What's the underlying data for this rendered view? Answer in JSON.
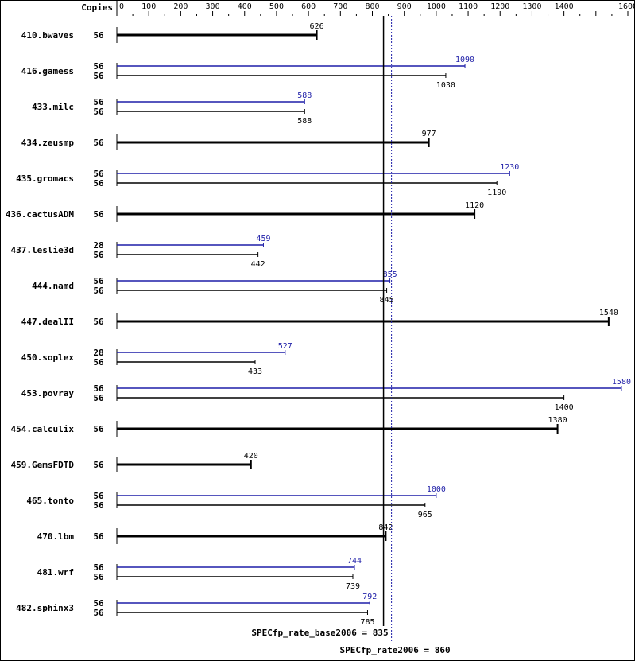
{
  "chart_data": {
    "type": "bar",
    "orientation": "horizontal",
    "copies_header": "Copies",
    "xlim": [
      0,
      1600
    ],
    "tick_labels": [
      0,
      100,
      200,
      300,
      400,
      500,
      600,
      700,
      800,
      900,
      1000,
      1100,
      1200,
      1300,
      1400,
      1600
    ],
    "colors": {
      "base": "#000000",
      "peak": "#1f1fa8"
    },
    "benchmarks": [
      {
        "name": "410.bwaves",
        "base_copies": 56,
        "base": 626,
        "peak_copies": null,
        "peak": null
      },
      {
        "name": "416.gamess",
        "base_copies": 56,
        "base": 1030,
        "peak_copies": 56,
        "peak": 1090
      },
      {
        "name": "433.milc",
        "base_copies": 56,
        "base": 588,
        "peak_copies": 56,
        "peak": 588
      },
      {
        "name": "434.zeusmp",
        "base_copies": 56,
        "base": 977,
        "peak_copies": null,
        "peak": null
      },
      {
        "name": "435.gromacs",
        "base_copies": 56,
        "base": 1190,
        "peak_copies": 56,
        "peak": 1230
      },
      {
        "name": "436.cactusADM",
        "base_copies": 56,
        "base": 1120,
        "peak_copies": null,
        "peak": null
      },
      {
        "name": "437.leslie3d",
        "base_copies": 56,
        "base": 442,
        "peak_copies": 28,
        "peak": 459
      },
      {
        "name": "444.namd",
        "base_copies": 56,
        "base": 845,
        "peak_copies": 56,
        "peak": 855
      },
      {
        "name": "447.dealII",
        "base_copies": 56,
        "base": 1540,
        "peak_copies": null,
        "peak": null
      },
      {
        "name": "450.soplex",
        "base_copies": 56,
        "base": 433,
        "peak_copies": 28,
        "peak": 527
      },
      {
        "name": "453.povray",
        "base_copies": 56,
        "base": 1400,
        "peak_copies": 56,
        "peak": 1580
      },
      {
        "name": "454.calculix",
        "base_copies": 56,
        "base": 1380,
        "peak_copies": null,
        "peak": null
      },
      {
        "name": "459.GemsFDTD",
        "base_copies": 56,
        "base": 420,
        "peak_copies": null,
        "peak": null
      },
      {
        "name": "465.tonto",
        "base_copies": 56,
        "base": 965,
        "peak_copies": 56,
        "peak": 1000
      },
      {
        "name": "470.lbm",
        "base_copies": 56,
        "base": 842,
        "peak_copies": null,
        "peak": null
      },
      {
        "name": "481.wrf",
        "base_copies": 56,
        "base": 739,
        "peak_copies": 56,
        "peak": 744
      },
      {
        "name": "482.sphinx3",
        "base_copies": 56,
        "base": 785,
        "peak_copies": 56,
        "peak": 792
      }
    ],
    "base_metric": {
      "label": "SPECfp_rate_base2006 = 835",
      "value": 835
    },
    "peak_metric": {
      "label": "SPECfp_rate2006 = 860",
      "value": 860
    }
  }
}
